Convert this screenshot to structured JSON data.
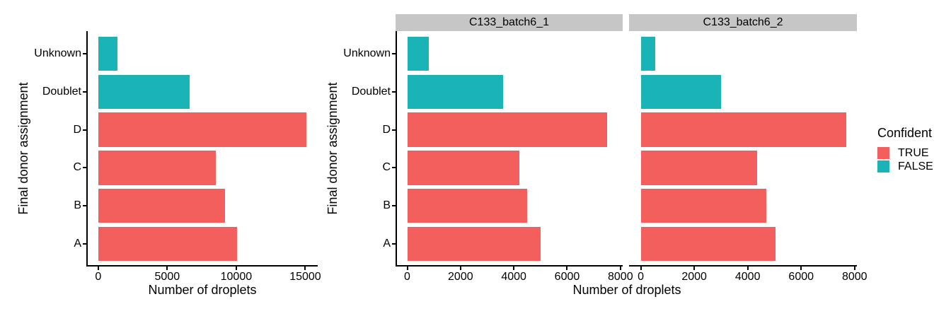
{
  "colors": {
    "confident_true": "#F25F5C",
    "confident_false": "#1AB3B6",
    "strip_background": "#C6C6C6",
    "axis_line": "#000000",
    "text": "#000000",
    "plot_background": "#FFFFFF"
  },
  "legend": {
    "title": "Confident",
    "position": "right",
    "items": [
      {
        "label": "TRUE",
        "color": "#F25F5C"
      },
      {
        "label": "FALSE",
        "color": "#1AB3B6"
      }
    ]
  },
  "chart_data": [
    {
      "type": "bar",
      "orientation": "horizontal",
      "panel": "overall",
      "facet_label": "",
      "categories": [
        "Unknown",
        "Doublet",
        "D",
        "C",
        "B",
        "A"
      ],
      "values": [
        1400,
        6600,
        15100,
        8500,
        9200,
        10050
      ],
      "confident": [
        false,
        false,
        true,
        true,
        true,
        true
      ],
      "xlabel": "Number of droplets",
      "ylabel": "Final donor assignment",
      "xticks": [
        0,
        5000,
        10000,
        15000
      ],
      "xtick_labels": [
        "0",
        "5000",
        "10000",
        "15000"
      ],
      "xlim": [
        0,
        15900
      ],
      "grid": false,
      "legend_series": {
        "TRUE": "#F25F5C",
        "FALSE": "#1AB3B6"
      }
    },
    {
      "type": "bar",
      "orientation": "horizontal",
      "panel": "facet-1",
      "facet_label": "C133_batch6_1",
      "categories": [
        "Unknown",
        "Doublet",
        "D",
        "C",
        "B",
        "A"
      ],
      "values": [
        800,
        3600,
        7500,
        4200,
        4500,
        5000
      ],
      "confident": [
        false,
        false,
        true,
        true,
        true,
        true
      ],
      "xlabel": "Number of droplets",
      "ylabel": "Final donor assignment",
      "xticks": [
        0,
        2000,
        4000,
        6000,
        8000
      ],
      "xtick_labels": [
        "0",
        "2000",
        "4000",
        "6000",
        "8000"
      ],
      "xlim": [
        0,
        8085
      ],
      "grid": false
    },
    {
      "type": "bar",
      "orientation": "horizontal",
      "panel": "facet-2",
      "facet_label": "C133_batch6_2",
      "categories": [
        "Unknown",
        "Doublet",
        "D",
        "C",
        "B",
        "A"
      ],
      "values": [
        550,
        3000,
        7700,
        4350,
        4700,
        5050
      ],
      "confident": [
        false,
        false,
        true,
        true,
        true,
        true
      ],
      "xlabel": "Number of droplets",
      "ylabel": "Final donor assignment",
      "xticks": [
        0,
        2000,
        4000,
        6000,
        8000
      ],
      "xtick_labels": [
        "0",
        "2000",
        "4000",
        "6000",
        "8000"
      ],
      "xlim": [
        0,
        8085
      ],
      "grid": false
    }
  ]
}
